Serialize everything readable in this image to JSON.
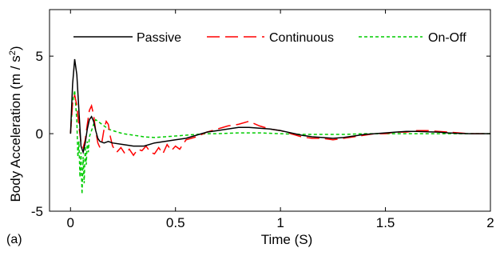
{
  "panel_label": "(a)",
  "chart_data": {
    "type": "line",
    "title": "",
    "xlabel": "Time (S)",
    "ylabel_main": "Body Acceleration (m / s",
    "ylabel_sup": "2",
    "ylabel_end": ")",
    "xlim": [
      -0.1,
      2
    ],
    "ylim": [
      -5,
      8
    ],
    "xticks": [
      0,
      0.5,
      1,
      1.5,
      2
    ],
    "xtick_labels": [
      "0",
      "0.5",
      "1",
      "1.5",
      "2"
    ],
    "yticks": [
      -5,
      0,
      5
    ],
    "ytick_labels": [
      "-5",
      "0",
      "5"
    ],
    "grid": false,
    "legend_position": "top",
    "series": [
      {
        "name": "Passive",
        "color": "#000000",
        "style": "solid",
        "x": [
          0,
          0.01,
          0.02,
          0.03,
          0.04,
          0.05,
          0.06,
          0.07,
          0.08,
          0.09,
          0.1,
          0.11,
          0.12,
          0.13,
          0.14,
          0.16,
          0.18,
          0.2,
          0.25,
          0.3,
          0.35,
          0.4,
          0.45,
          0.5,
          0.55,
          0.6,
          0.65,
          0.7,
          0.75,
          0.8,
          0.85,
          0.9,
          0.95,
          1.0,
          1.05,
          1.1,
          1.15,
          1.2,
          1.25,
          1.3,
          1.35,
          1.4,
          1.45,
          1.5,
          1.55,
          1.6,
          1.65,
          1.7,
          1.75,
          1.8,
          1.85,
          1.9,
          1.95,
          2.0
        ],
        "y": [
          0,
          3.2,
          4.8,
          3.8,
          1.5,
          -0.8,
          -1.2,
          -0.6,
          0.3,
          0.9,
          1.1,
          0.8,
          0.2,
          -0.3,
          -0.5,
          -0.6,
          -0.5,
          -0.6,
          -0.7,
          -0.8,
          -0.8,
          -0.6,
          -0.5,
          -0.4,
          -0.3,
          -0.1,
          0.1,
          0.2,
          0.3,
          0.4,
          0.4,
          0.35,
          0.3,
          0.2,
          0.05,
          -0.1,
          -0.2,
          -0.25,
          -0.3,
          -0.25,
          -0.15,
          -0.05,
          0.0,
          0.05,
          0.1,
          0.15,
          0.15,
          0.12,
          0.1,
          0.05,
          0.02,
          0.0,
          0.0,
          0.0
        ]
      },
      {
        "name": "Continuous",
        "color": "#ff0000",
        "style": "dashed",
        "x": [
          0,
          0.01,
          0.02,
          0.03,
          0.04,
          0.05,
          0.06,
          0.07,
          0.08,
          0.09,
          0.1,
          0.11,
          0.12,
          0.13,
          0.14,
          0.15,
          0.16,
          0.17,
          0.18,
          0.19,
          0.2,
          0.22,
          0.24,
          0.26,
          0.28,
          0.3,
          0.32,
          0.34,
          0.36,
          0.38,
          0.4,
          0.42,
          0.44,
          0.46,
          0.48,
          0.5,
          0.52,
          0.55,
          0.6,
          0.65,
          0.7,
          0.75,
          0.8,
          0.85,
          0.9,
          0.95,
          1.0,
          1.05,
          1.1,
          1.15,
          1.2,
          1.25,
          1.3,
          1.35,
          1.4,
          1.45,
          1.5,
          1.55,
          1.6,
          1.65,
          1.7,
          1.75,
          1.8,
          1.85,
          1.9,
          1.95,
          2.0
        ],
        "y": [
          0,
          2.0,
          2.5,
          1.8,
          0.5,
          -0.6,
          -0.9,
          -0.4,
          0.6,
          1.5,
          1.8,
          1.2,
          0.2,
          -0.6,
          -0.9,
          -0.5,
          0.3,
          0.8,
          0.6,
          -0.2,
          -0.8,
          -1.2,
          -0.9,
          -1.3,
          -1.0,
          -1.4,
          -1.0,
          -1.1,
          -0.8,
          -1.2,
          -1.3,
          -0.9,
          -1.3,
          -0.7,
          -1.1,
          -0.8,
          -1.0,
          -0.4,
          -0.2,
          0.1,
          0.3,
          0.5,
          0.6,
          0.8,
          0.5,
          0.3,
          0.2,
          0.0,
          -0.2,
          -0.3,
          -0.3,
          -0.4,
          -0.3,
          -0.2,
          -0.1,
          0.0,
          0.0,
          0.1,
          0.1,
          0.2,
          0.2,
          0.15,
          0.1,
          0.05,
          0.0,
          0.0,
          0.0
        ]
      },
      {
        "name": "On-Off",
        "color": "#00cc00",
        "style": "dotted",
        "x": [
          0,
          0.01,
          0.02,
          0.03,
          0.035,
          0.04,
          0.045,
          0.05,
          0.055,
          0.06,
          0.065,
          0.07,
          0.075,
          0.08,
          0.085,
          0.09,
          0.1,
          0.11,
          0.12,
          0.14,
          0.16,
          0.18,
          0.2,
          0.25,
          0.3,
          0.35,
          0.4,
          0.45,
          0.5,
          0.55,
          0.6,
          0.65,
          0.7,
          0.8,
          0.9,
          1.0,
          1.1,
          1.2,
          1.3,
          1.4,
          1.5,
          1.6,
          1.7,
          1.8,
          1.9,
          2.0
        ],
        "y": [
          0,
          2.0,
          2.8,
          0.8,
          -1.5,
          -0.5,
          -2.8,
          -1.2,
          -3.9,
          -1.5,
          -3.2,
          -0.8,
          -2.0,
          -0.5,
          -1.2,
          -0.2,
          0.2,
          0.6,
          0.9,
          0.7,
          0.5,
          0.3,
          0.2,
          0.0,
          -0.1,
          -0.2,
          -0.25,
          -0.2,
          -0.15,
          -0.1,
          -0.05,
          0.0,
          0.0,
          0.05,
          0.05,
          0.0,
          -0.05,
          -0.05,
          -0.05,
          0.0,
          0.0,
          0.0,
          0.0,
          0.0,
          0.0,
          0.0
        ]
      }
    ]
  }
}
